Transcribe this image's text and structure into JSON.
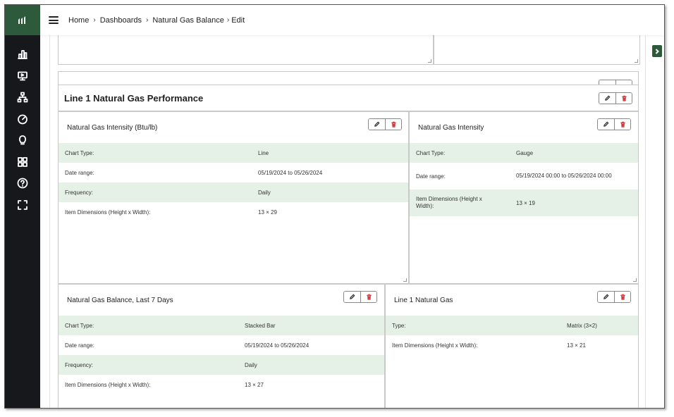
{
  "nav": {
    "logo": "logo-icon",
    "icons": [
      "bar-chart-icon",
      "monitor-icon",
      "hierarchy-icon",
      "gauge-icon",
      "lightbulb-icon",
      "grid-icon",
      "help-icon",
      "fullscreen-icon"
    ]
  },
  "breadcrumb": {
    "items": [
      "Home",
      "Dashboards",
      "Natural Gas Balance",
      "Edit"
    ]
  },
  "section": {
    "title": "Line 1 Natural Gas Performance"
  },
  "cards": [
    {
      "title": "Natural Gas Intensity (Btu/lb)",
      "rows": [
        {
          "label": "Chart Type:",
          "value": "Line"
        },
        {
          "label": "Date range:",
          "value": "05/19/2024 to 05/26/2024"
        },
        {
          "label": "Frequency:",
          "value": "Daily"
        },
        {
          "label": "Item Dimensions (Height x Width):",
          "value": "13 × 29"
        }
      ]
    },
    {
      "title": "Natural Gas Intensity",
      "rows": [
        {
          "label": "Chart Type:",
          "value": "Gauge"
        },
        {
          "label": "Date range:",
          "value": "05/19/2024 00:00 to 05/26/2024 00:00"
        },
        {
          "label": "Item Dimensions (Height x Width):",
          "value": "13 × 19"
        }
      ]
    },
    {
      "title": "Natural Gas Balance, Last 7 Days",
      "rows": [
        {
          "label": "Chart Type:",
          "value": "Stacked Bar"
        },
        {
          "label": "Date range:",
          "value": "05/19/2024 to 05/26/2024"
        },
        {
          "label": "Frequency:",
          "value": "Daily"
        },
        {
          "label": "Item Dimensions (Height x Width):",
          "value": "13 × 27"
        }
      ]
    },
    {
      "title": "Line 1 Natural Gas",
      "rows": [
        {
          "label": "Type:",
          "value": "Matrix (3×2)"
        },
        {
          "label": "Item Dimensions (Height x Width):",
          "value": "13 × 21"
        }
      ]
    }
  ],
  "colors": {
    "brand_green": "#2e5a3c",
    "sidebar": "#17181c",
    "row_stripe": "#e5f1e6",
    "delete_red": "#d23b3b"
  }
}
